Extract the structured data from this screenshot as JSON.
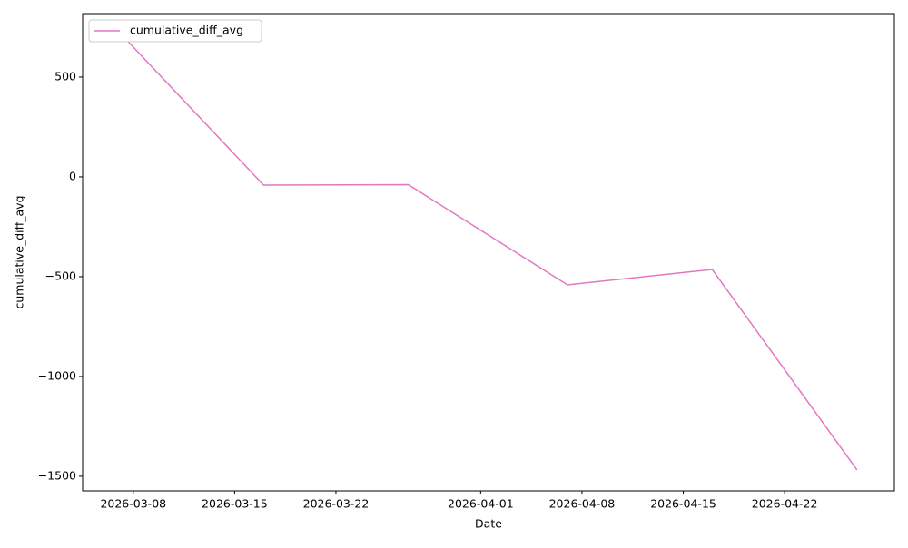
{
  "chart_data": {
    "type": "line",
    "x_label": "Date",
    "y_label": "cumulative_diff_avg",
    "x": [
      "2026-03-07",
      "2026-03-17",
      "2026-03-27",
      "2026-04-07",
      "2026-04-17",
      "2026-04-27"
    ],
    "series": [
      {
        "name": "cumulative_diff_avg",
        "color": "#e377c2",
        "values": [
          727,
          -41,
          -39,
          -541,
          -464,
          -1468
        ]
      }
    ],
    "xlim": [
      "2026-03-04T12:00",
      "2026-04-29T14:00"
    ],
    "xticks": [
      "2026-03-08",
      "2026-03-15",
      "2026-03-22",
      "2026-04-01",
      "2026-04-08",
      "2026-04-15",
      "2026-04-22"
    ],
    "ylim": [
      -1573,
      818
    ],
    "yticks": [
      {
        "value": -1500,
        "label": "−1500"
      },
      {
        "value": -1000,
        "label": "−1000"
      },
      {
        "value": -500,
        "label": "−500"
      },
      0,
      500
    ],
    "grid": false,
    "legend": "upper left"
  }
}
